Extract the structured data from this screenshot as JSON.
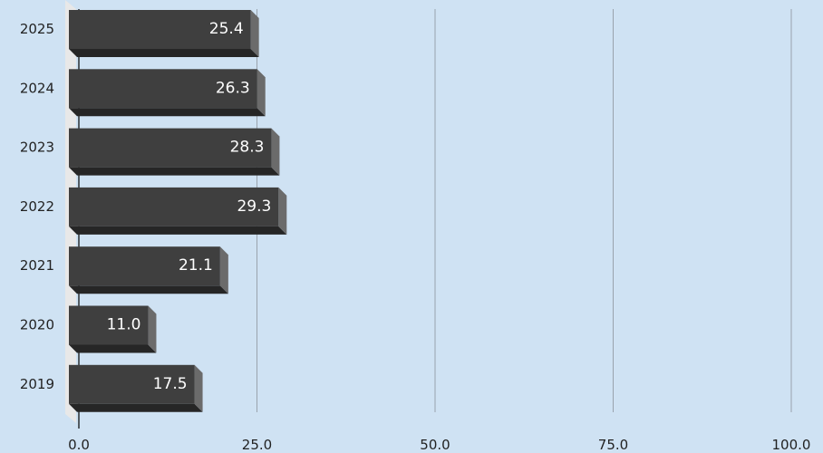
{
  "chart_data": {
    "type": "bar",
    "orientation": "horizontal",
    "style": "3d",
    "categories": [
      "2025",
      "2024",
      "2023",
      "2022",
      "2021",
      "2020",
      "2019"
    ],
    "values": [
      25.4,
      26.3,
      28.3,
      29.3,
      21.1,
      11.0,
      17.5
    ],
    "value_labels": [
      "25.4",
      "26.3",
      "28.3",
      "29.3",
      "21.1",
      "11.0",
      "17.5"
    ],
    "xlim": [
      0,
      100
    ],
    "x_ticks": [
      "0.0",
      "25.0",
      "50.0",
      "75.0",
      "100.0"
    ],
    "title": "",
    "xlabel": "",
    "ylabel": "",
    "grid": "vertical",
    "legend": "none",
    "colors": {
      "background": "#cfe2f3",
      "bar_front": "#3f3f3f",
      "bar_side": "#6b6b6b",
      "bar_bottom": "#262626",
      "gridline": "#9aa3ad",
      "floor": "#e8e8e8",
      "value_text": "#ffffff",
      "axis_text": "#222222"
    }
  }
}
